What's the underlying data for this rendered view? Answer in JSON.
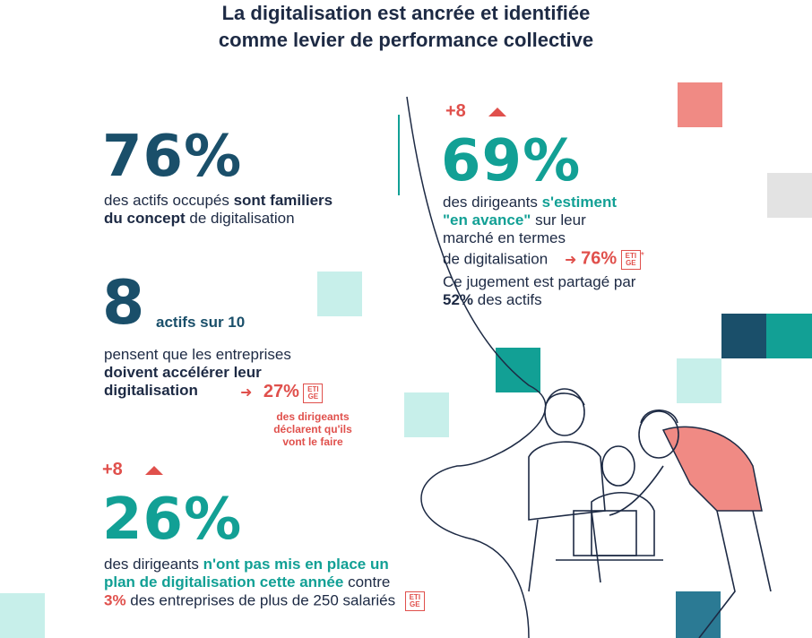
{
  "title_line1": "La digitalisation est ancrée et identifiée",
  "title_line2": "comme levier de performance collective",
  "stat1": {
    "value": "76%",
    "line1_a": "des actifs occupés ",
    "line1_b": "sont familiers",
    "line2_a": "du concept",
    "line2_b": " de digitalisation"
  },
  "stat2": {
    "change": "+8",
    "value": "69%",
    "line1_a": "des dirigeants ",
    "line1_b": "s'estiment",
    "line2_a": "\"en avance\"",
    "line2_b": " sur leur",
    "line3": "marché en termes",
    "line4": "de digitalisation",
    "eti_value": "76%",
    "asterisk": "*",
    "line5": "Ce jugement est partagé par",
    "line6_a": "52%",
    "line6_b": " des actifs"
  },
  "stat3": {
    "value": "8",
    "suffix": "actifs sur 10",
    "line1": "pensent que les entreprises",
    "line2": "doivent accélérer leur",
    "line3": "digitalisation",
    "eti_value": "27%",
    "eti_line1": "des dirigeants",
    "eti_line2": "déclarent qu'ils",
    "eti_line3": "vont le faire"
  },
  "stat4": {
    "change": "+8",
    "value": "26%",
    "line1_a": "des dirigeants ",
    "line1_b": "n'ont pas mis en place un",
    "line2_a": "plan de digitalisation cette année",
    "line2_b": " contre",
    "line3_a": "3%",
    "line3_b": " des entreprises de plus de 250 salariés"
  },
  "badge": {
    "top": "ETI",
    "bottom": "GE"
  },
  "colors": {
    "navy": "#1a4f6a",
    "teal": "#12a095",
    "red": "#e0504c",
    "light_teal": "#c7efea",
    "pink": "#f08a84",
    "gray": "#e3e3e3"
  }
}
